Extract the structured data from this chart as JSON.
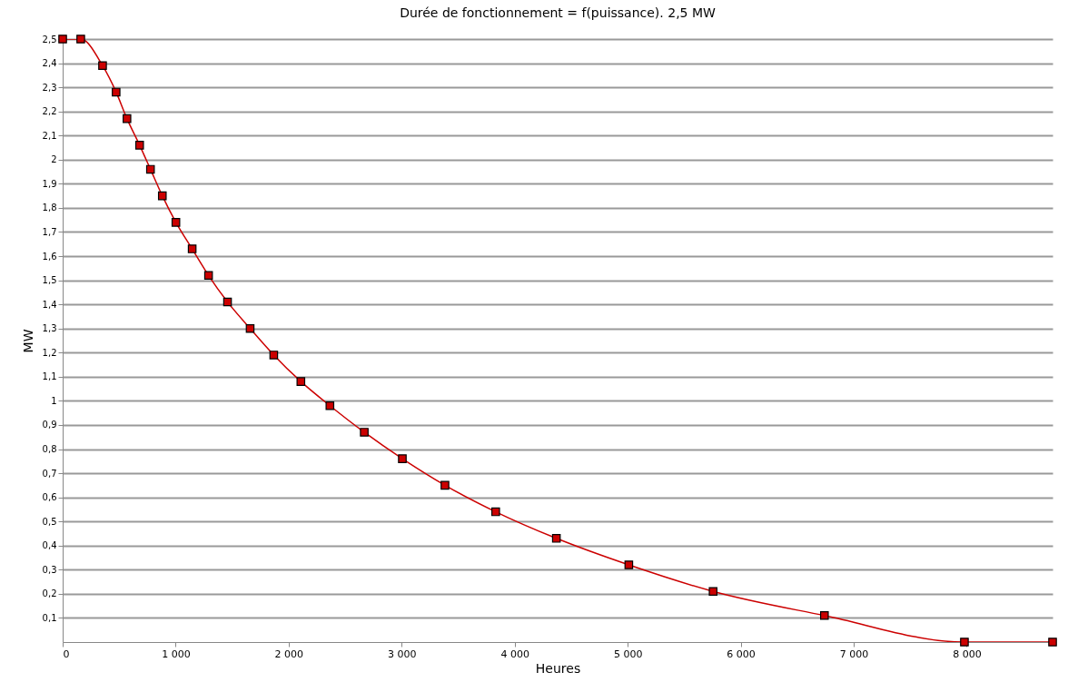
{
  "chart_data": {
    "type": "line",
    "title": "Durée de fonctionnement = f(puissance).  2,5 MW",
    "xlabel": "Heures",
    "ylabel": "MW",
    "x": [
      0,
      160,
      353,
      473,
      569,
      681,
      777,
      882,
      1002,
      1146,
      1291,
      1459,
      1659,
      1868,
      2108,
      2365,
      2669,
      3006,
      3383,
      3832,
      4369,
      5010,
      5756,
      6741,
      7980,
      8760
    ],
    "series": [
      {
        "color": "#cc0000",
        "values": [
          2.5,
          2.5,
          2.39,
          2.28,
          2.17,
          2.06,
          1.96,
          1.85,
          1.74,
          1.63,
          1.52,
          1.41,
          1.3,
          1.19,
          1.08,
          0.98,
          0.87,
          0.76,
          0.65,
          0.54,
          0.43,
          0.32,
          0.21,
          0.11,
          0,
          0
        ]
      }
    ],
    "xlim": [
      0,
      8760
    ],
    "ylim": [
      0,
      2.5
    ],
    "xticks": [
      0,
      {
        "value": 1000,
        "label": "1 000"
      },
      {
        "value": 2000,
        "label": "2 000"
      },
      {
        "value": 3000,
        "label": "3 000"
      },
      {
        "value": 4000,
        "label": "4 000"
      },
      {
        "value": 5000,
        "label": "5 000"
      },
      {
        "value": 6000,
        "label": "6 000"
      },
      {
        "value": 7000,
        "label": "7 000"
      },
      {
        "value": 8000,
        "label": "8 000"
      }
    ],
    "yticks": [
      {
        "value": 0.1,
        "label": "0,1"
      },
      {
        "value": 0.2,
        "label": "0,2"
      },
      {
        "value": 0.3,
        "label": "0,3"
      },
      {
        "value": 0.4,
        "label": "0,4"
      },
      {
        "value": 0.5,
        "label": "0,5"
      },
      {
        "value": 0.6,
        "label": "0,6"
      },
      {
        "value": 0.7,
        "label": "0,7"
      },
      {
        "value": 0.8,
        "label": "0,8"
      },
      {
        "value": 0.9,
        "label": "0,9"
      },
      1,
      {
        "value": 1.1,
        "label": "1,1"
      },
      {
        "value": 1.2,
        "label": "1,2"
      },
      {
        "value": 1.3,
        "label": "1,3"
      },
      {
        "value": 1.4,
        "label": "1,4"
      },
      {
        "value": 1.5,
        "label": "1,5"
      },
      {
        "value": 1.6,
        "label": "1,6"
      },
      {
        "value": 1.7,
        "label": "1,7"
      },
      {
        "value": 1.8,
        "label": "1,8"
      },
      {
        "value": 1.9,
        "label": "1,9"
      },
      2,
      {
        "value": 2.1,
        "label": "2,1"
      },
      {
        "value": 2.2,
        "label": "2,2"
      },
      {
        "value": 2.3,
        "label": "2,3"
      },
      {
        "value": 2.4,
        "label": "2,4"
      },
      {
        "value": 2.5,
        "label": "2,5"
      }
    ],
    "grid": "y",
    "marker": "square",
    "line_style": "solid"
  }
}
